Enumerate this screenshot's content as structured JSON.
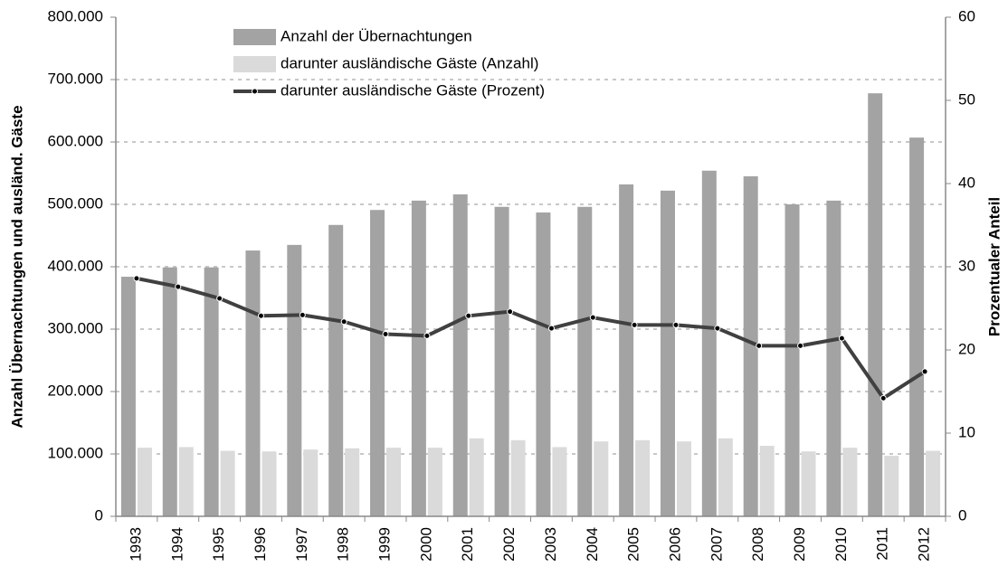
{
  "chart_data": {
    "type": "bar",
    "y_label": "Anzahl Übernachtungen und ausländ. Gäste",
    "y2_label": "Prozentualer Anteil",
    "categories": [
      "1993",
      "1994",
      "1995",
      "1996",
      "1997",
      "1998",
      "1999",
      "2000",
      "2001",
      "2002",
      "2003",
      "2004",
      "2005",
      "2006",
      "2007",
      "2008",
      "2009",
      "2010",
      "2011",
      "2012"
    ],
    "series": [
      {
        "name": "Anzahl der Übernachtungen",
        "type": "bar",
        "color": "#a3a3a3",
        "values": [
          384000,
          399000,
          399000,
          426000,
          435000,
          467000,
          491000,
          506000,
          516000,
          496000,
          487000,
          496000,
          532000,
          522000,
          554000,
          545000,
          500000,
          506000,
          678000,
          607000
        ]
      },
      {
        "name": "darunter ausländische Gäste (Anzahl)",
        "type": "bar",
        "color": "#dadada",
        "values": [
          110000,
          111000,
          105000,
          104000,
          107000,
          109000,
          110000,
          110000,
          125000,
          122000,
          111000,
          120000,
          122000,
          120000,
          125000,
          113000,
          104000,
          110000,
          97000,
          105000
        ]
      },
      {
        "name": "darunter ausländische Gäste (Prozent)",
        "type": "line",
        "axis": "y2",
        "color": "#404040",
        "values": [
          28.6,
          27.6,
          26.2,
          24.1,
          24.2,
          23.4,
          21.9,
          21.7,
          24.1,
          24.6,
          22.6,
          23.9,
          23.0,
          23.0,
          22.6,
          20.5,
          20.5,
          21.4,
          14.2,
          17.4
        ]
      }
    ],
    "ylim": [
      0,
      800000
    ],
    "yticks": [
      0,
      {
        "value": 100000,
        "label": "100.000"
      },
      {
        "value": 200000,
        "label": "200.000"
      },
      {
        "value": 300000,
        "label": "300.000"
      },
      {
        "value": 400000,
        "label": "400.000"
      },
      {
        "value": 500000,
        "label": "500.000"
      },
      {
        "value": 600000,
        "label": "600.000"
      },
      {
        "value": 700000,
        "label": "700.000"
      },
      {
        "value": 800000,
        "label": "800.000"
      }
    ],
    "y2lim": [
      0,
      60
    ],
    "y2ticks": [
      0,
      10,
      20,
      30,
      40,
      50,
      60
    ],
    "grid": true,
    "legend": "top-left"
  }
}
